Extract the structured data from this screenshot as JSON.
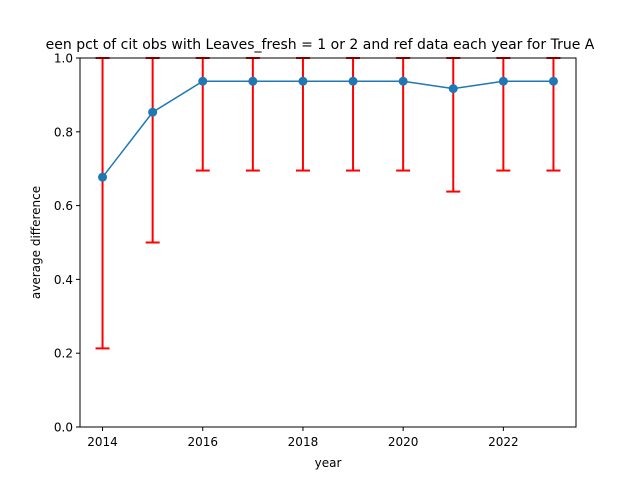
{
  "chart_data": {
    "type": "line",
    "title": "een pct of cit obs with Leaves_fresh = 1 or 2 and ref data each year for True A",
    "xlabel": "year",
    "ylabel": "average difference",
    "xlim": [
      2013.55,
      2023.45
    ],
    "ylim": [
      0.0,
      1.0
    ],
    "xticks": [
      2014,
      2016,
      2018,
      2020,
      2022
    ],
    "yticks": [
      0.0,
      0.2,
      0.4,
      0.6,
      0.8,
      1.0
    ],
    "xtick_labels": [
      "2014",
      "2016",
      "2018",
      "2020",
      "2022"
    ],
    "ytick_labels": [
      "0.0",
      "0.2",
      "0.4",
      "0.6",
      "0.8",
      "1.0"
    ],
    "grid": false,
    "series": [
      {
        "x": [
          2014,
          2015,
          2016,
          2017,
          2018,
          2019,
          2020,
          2021,
          2022,
          2023
        ],
        "y": [
          0.677,
          0.853,
          0.937,
          0.937,
          0.937,
          0.937,
          0.937,
          0.917,
          0.937,
          0.937
        ],
        "err_low": [
          0.213,
          0.5,
          0.695,
          0.695,
          0.695,
          0.695,
          0.695,
          0.638,
          0.695,
          0.695
        ],
        "err_high": [
          1.0,
          1.0,
          1.0,
          1.0,
          1.0,
          1.0,
          1.0,
          1.0,
          1.0,
          1.0
        ],
        "color": "#1f77b4",
        "errorbar_color": "#ff0000"
      }
    ]
  }
}
